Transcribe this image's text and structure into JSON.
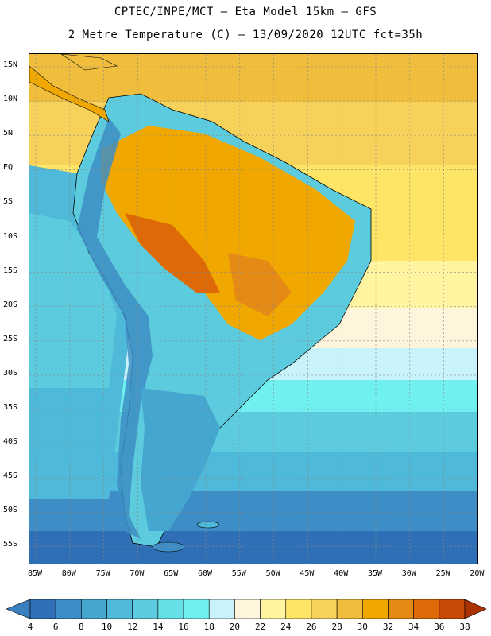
{
  "title_line1": "CPTEC/INPE/MCT –  Eta Model 15km – GFS",
  "title_line2": "2 Metre Temperature (C) – 13/09/2020 12UTC fct=35h",
  "lat_labels": [
    "15N",
    "10N",
    "5N",
    "EQ",
    "5S",
    "10S",
    "15S",
    "20S",
    "25S",
    "30S",
    "35S",
    "40S",
    "45S",
    "50S",
    "55S"
  ],
  "lon_labels": [
    "85W",
    "80W",
    "75W",
    "70W",
    "65W",
    "60W",
    "55W",
    "50W",
    "45W",
    "40W",
    "35W",
    "30W",
    "25W",
    "20W"
  ],
  "colorbar": {
    "labels": [
      "4",
      "6",
      "8",
      "10",
      "12",
      "14",
      "16",
      "18",
      "20",
      "22",
      "24",
      "26",
      "28",
      "30",
      "32",
      "34",
      "36",
      "38"
    ],
    "colors": [
      "#3a7fbf",
      "#2f6fb5",
      "#3d8ec6",
      "#45a6d0",
      "#4eb9d8",
      "#5ccbdd",
      "#66e0e6",
      "#70f0f0",
      "#c9f3fb",
      "#fff5dc",
      "#fff4a0",
      "#ffe566",
      "#f7d25a",
      "#f0be3c",
      "#f0a800",
      "#e58a14",
      "#dd6a06",
      "#c84a06",
      "#aa3200"
    ]
  },
  "colors": {
    "ocean_warm": "#f7d25a",
    "ocean_cool": "#4eb9d8",
    "land_hot": "#f0a800",
    "land_cold": "#3d8ec6",
    "grid": "#888888"
  }
}
